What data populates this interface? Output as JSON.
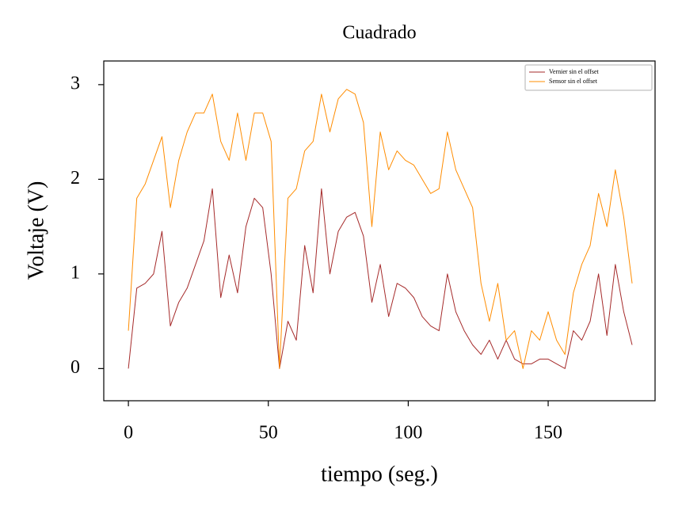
{
  "chart_data": {
    "type": "line",
    "title": "Cuadrado",
    "x_label": "tiempo (seg.)",
    "y_label": "Voltaje (V)",
    "x": [
      0,
      3,
      6,
      9,
      12,
      15,
      18,
      21,
      24,
      27,
      30,
      33,
      36,
      39,
      42,
      45,
      48,
      51,
      54,
      57,
      60,
      63,
      66,
      69,
      72,
      75,
      78,
      81,
      84,
      87,
      90,
      93,
      96,
      99,
      102,
      105,
      108,
      111,
      114,
      117,
      120,
      123,
      126,
      129,
      132,
      135,
      138,
      141,
      144,
      147,
      150,
      153,
      156,
      159,
      162,
      165,
      168,
      171,
      174,
      177,
      180
    ],
    "series": [
      {
        "name": "Vernier sin el offset",
        "color": "#a52a2a",
        "values": [
          0,
          0.85,
          0.9,
          1.0,
          1.45,
          0.45,
          0.7,
          0.85,
          1.1,
          1.35,
          1.9,
          0.75,
          1.2,
          0.8,
          1.5,
          1.8,
          1.7,
          1.0,
          0.0,
          0.5,
          0.3,
          1.3,
          0.8,
          1.9,
          1.0,
          1.45,
          1.6,
          1.65,
          1.4,
          0.7,
          1.1,
          0.55,
          0.9,
          0.85,
          0.75,
          0.55,
          0.45,
          0.4,
          1.0,
          0.6,
          0.4,
          0.25,
          0.15,
          0.3,
          0.1,
          0.3,
          0.1,
          0.05,
          0.05,
          0.1,
          0.1,
          0.05,
          0.0,
          0.4,
          0.3,
          0.5,
          1.0,
          0.35,
          1.1,
          0.6,
          0.25
        ]
      },
      {
        "name": "Sensor sin el offset",
        "color": "#ff8c00",
        "values": [
          0.4,
          1.8,
          1.95,
          2.2,
          2.45,
          1.7,
          2.2,
          2.5,
          2.7,
          2.7,
          2.9,
          2.4,
          2.2,
          2.7,
          2.2,
          2.7,
          2.7,
          2.4,
          0.0,
          1.8,
          1.9,
          2.3,
          2.4,
          2.9,
          2.5,
          2.85,
          2.95,
          2.9,
          2.6,
          1.5,
          2.5,
          2.1,
          2.3,
          2.2,
          2.15,
          2.0,
          1.85,
          1.9,
          2.5,
          2.1,
          1.9,
          1.7,
          0.9,
          0.5,
          0.9,
          0.3,
          0.4,
          0.0,
          0.4,
          0.3,
          0.6,
          0.3,
          0.15,
          0.8,
          1.1,
          1.3,
          1.85,
          1.5,
          2.1,
          1.6,
          0.9
        ]
      }
    ],
    "xlim": [
      -8.8,
      188.2
    ],
    "ylim": [
      -0.34,
      3.25
    ],
    "xticks": [
      0,
      50,
      100,
      150
    ],
    "yticks": [
      0,
      1,
      2,
      3
    ],
    "legend": "upper right"
  }
}
